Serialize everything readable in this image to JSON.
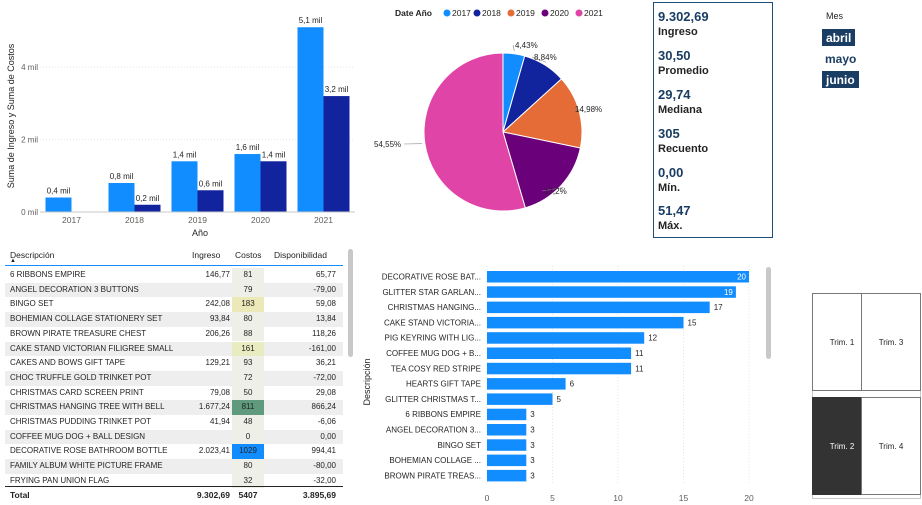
{
  "chart_data": [
    {
      "type": "bar",
      "title": "",
      "xlabel": "Año",
      "ylabel": "Suma de Ingreso y Suma de Costos",
      "categories": [
        "2017",
        "2018",
        "2019",
        "2020",
        "2021"
      ],
      "ylim": [
        0,
        5300
      ],
      "yticks": [
        0,
        2000,
        4000
      ],
      "ytick_labels": [
        "0 mil",
        "2 mil",
        "4 mil"
      ],
      "series": [
        {
          "name": "Ingreso",
          "color": "#118dff",
          "values": [
            400,
            800,
            1400,
            1600,
            5100
          ],
          "labels": [
            "0,4 mil",
            "0,8 mil",
            "1,4 mil",
            "1,6 mil",
            "5,1 mil"
          ]
        },
        {
          "name": "Costos",
          "color": "#12239e",
          "values": [
            0,
            200,
            600,
            1400,
            3200
          ],
          "labels": [
            "",
            "0,2 mil",
            "0,6 mil",
            "1,4 mil",
            "3,2 mil"
          ]
        }
      ]
    },
    {
      "type": "pie",
      "legend_title": "Date Año",
      "legend_position": "top",
      "categories": [
        "2017",
        "2018",
        "2019",
        "2020",
        "2021"
      ],
      "values": [
        4.43,
        8.84,
        14.98,
        17.2,
        54.55
      ],
      "labels": [
        "4,43%",
        "8,84%",
        "14,98%",
        "17,2%",
        "54,55%"
      ],
      "colors": [
        "#118dff",
        "#12239e",
        "#e66c37",
        "#6b007b",
        "#e044a7"
      ]
    },
    {
      "type": "bar",
      "orientation": "horizontal",
      "ylabel": "Descripción",
      "xlim": [
        0,
        20
      ],
      "xticks": [
        0,
        5,
        10,
        15,
        20
      ],
      "color": "#118dff",
      "categories": [
        "DECORATIVE ROSE BAT...",
        "GLITTER STAR GARLAN...",
        "CHRISTMAS HANGING...",
        "CAKE STAND VICTORIA...",
        "PIG KEYRING WITH LIG...",
        "COFFEE MUG DOG + B...",
        "TEA COSY RED STRIPE",
        "HEARTS GIFT TAPE",
        "GLITTER CHRISTMAS T...",
        "6 RIBBONS EMPIRE",
        "ANGEL DECORATION 3...",
        "BINGO SET",
        "BOHEMIAN COLLAGE ...",
        "BROWN PIRATE TREAS..."
      ],
      "values": [
        20,
        19,
        17,
        15,
        12,
        11,
        11,
        6,
        5,
        3,
        3,
        3,
        3,
        3
      ]
    },
    {
      "type": "table",
      "columns": [
        "Descripción",
        "Ingreso",
        "Costos",
        "Disponibilidad"
      ],
      "rows": [
        [
          "6 RIBBONS EMPIRE",
          "146,77",
          "81",
          "65,77"
        ],
        [
          "ANGEL DECORATION 3 BUTTONS",
          "",
          "79",
          "-79,00"
        ],
        [
          "BINGO SET",
          "242,08",
          "183",
          "59,08"
        ],
        [
          "BOHEMIAN COLLAGE STATIONERY SET",
          "93,84",
          "80",
          "13,84"
        ],
        [
          "BROWN PIRATE TREASURE CHEST",
          "206,26",
          "88",
          "118,26"
        ],
        [
          "CAKE STAND VICTORIAN FILIGREE SMALL",
          "",
          "161",
          "-161,00"
        ],
        [
          "CAKES AND BOWS GIFT TAPE",
          "129,21",
          "93",
          "36,21"
        ],
        [
          "CHOC TRUFFLE GOLD TRINKET POT",
          "",
          "72",
          "-72,00"
        ],
        [
          "CHRISTMAS CARD SCREEN PRINT",
          "79,08",
          "50",
          "29,08"
        ],
        [
          "CHRISTMAS HANGING TREE WITH BELL",
          "1.677,24",
          "811",
          "866,24"
        ],
        [
          "CHRISTMAS PUDDING TRINKET POT",
          "41,94",
          "48",
          "-6,06"
        ],
        [
          "COFFEE MUG DOG + BALL DESIGN",
          "",
          "0",
          "0,00"
        ],
        [
          "DECORATIVE ROSE BATHROOM BOTTLE",
          "2.023,41",
          "1029",
          "994,41"
        ],
        [
          "FAMILY ALBUM WHITE PICTURE FRAME",
          "",
          "80",
          "-80,00"
        ],
        [
          "FRYING PAN UNION FLAG",
          "",
          "32",
          "-32,00"
        ]
      ],
      "cost_colors": [
        "#eef0e8",
        "#eef0e8",
        "#ede8b8",
        "#eef0e8",
        "#eef0e8",
        "#e9ecc0",
        "#eef0e8",
        "#eef0e8",
        "#eef0e8",
        "#5f9a7d",
        "#eef0e8",
        "#eef0e8",
        "#118dff",
        "#eef0e8",
        "#eef0e8"
      ],
      "total": [
        "Total",
        "9.302,69",
        "5407",
        "3.895,69"
      ]
    }
  ],
  "kpis": [
    {
      "value": "9.302,69",
      "label": "Ingreso"
    },
    {
      "value": "30,50",
      "label": "Promedio"
    },
    {
      "value": "29,74",
      "label": "Mediana"
    },
    {
      "value": "305",
      "label": "Recuento"
    },
    {
      "value": "0,00",
      "label": "Mín."
    },
    {
      "value": "51,47",
      "label": "Máx."
    }
  ],
  "month_slicer": {
    "title": "Mes",
    "items": [
      "abril",
      "mayo",
      "junio"
    ],
    "selected": [
      "abril",
      "junio"
    ]
  },
  "quarter_tiles": {
    "items": [
      "Trim. 1",
      "Trim. 3",
      "Trim. 2",
      "Trim. 4"
    ],
    "selected": "Trim. 2"
  }
}
